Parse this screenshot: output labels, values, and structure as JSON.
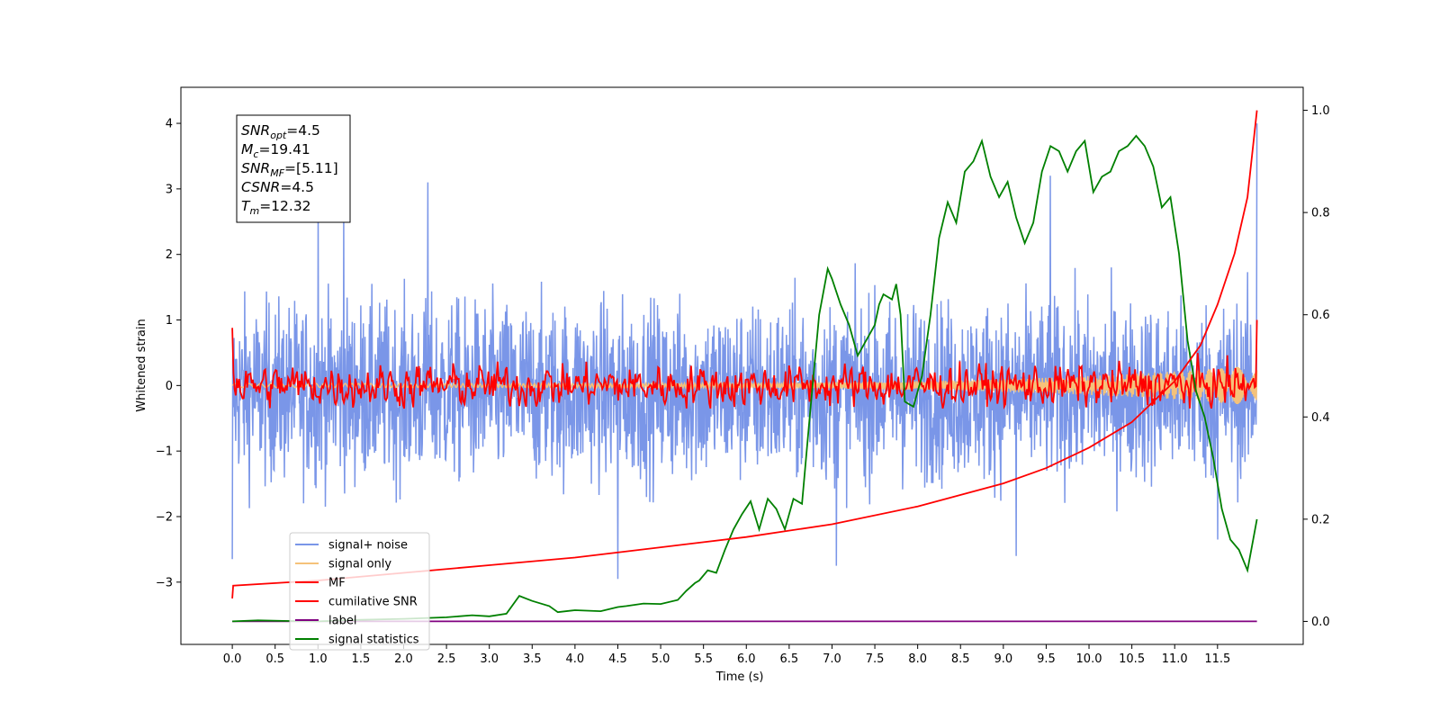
{
  "chart_data": {
    "type": "line",
    "xlabel": "Time (s)",
    "ylabel_left": "Whitened strain",
    "xlim": [
      -0.6,
      12.5
    ],
    "ylim_left": [
      -3.95,
      4.55
    ],
    "ylim_right": [
      -0.045,
      1.045
    ],
    "x_ticks": [
      "0.0",
      "0.5",
      "1.0",
      "1.5",
      "2.0",
      "2.5",
      "3.0",
      "3.5",
      "4.0",
      "4.5",
      "5.0",
      "5.5",
      "6.0",
      "6.5",
      "7.0",
      "7.5",
      "8.0",
      "8.5",
      "9.0",
      "9.5",
      "10.0",
      "10.5",
      "11.0",
      "11.5"
    ],
    "y_ticks_left": [
      "4",
      "3",
      "2",
      "1",
      "0",
      "−1",
      "−2",
      "−3"
    ],
    "y_ticks_right": [
      "1.0",
      "0.8",
      "0.6",
      "0.4",
      "0.2",
      "0.0"
    ],
    "grid": false,
    "legend_location": "lower-left",
    "annotation": {
      "lines": [
        {
          "sym": "SNR",
          "sub": "opt",
          "value": "=4.5"
        },
        {
          "sym": "M",
          "sub": "c",
          "value": "=19.41"
        },
        {
          "sym": "SNR",
          "sub": "MF",
          "value": "=[5.11]"
        },
        {
          "sym": "CSNR",
          "sub": "",
          "value": "=4.5"
        },
        {
          "sym": "T",
          "sub": "m",
          "value": "=12.32"
        }
      ]
    },
    "series": [
      {
        "name": "signal+ noise",
        "color": "#7a96e8",
        "axis": "left",
        "kind": "noise",
        "x_range": [
          0,
          11.96
        ],
        "center": -0.1,
        "amplitude": 1.1,
        "peaks": [
          [
            1.3,
            2.6
          ],
          [
            2.28,
            3.1
          ],
          [
            1.0,
            2.7
          ],
          [
            9.55,
            3.2
          ],
          [
            11.96,
            4.0
          ],
          [
            7.05,
            -2.75
          ],
          [
            4.5,
            -2.95
          ],
          [
            9.15,
            -2.6
          ],
          [
            11.5,
            -2.35
          ],
          [
            0.0,
            -2.65
          ]
        ]
      },
      {
        "name": "signal only",
        "color": "#f5c27a",
        "axis": "left",
        "kind": "chirp",
        "x_range": [
          0,
          11.96
        ],
        "amplitude_end": 0.28
      },
      {
        "name": "MF",
        "color": "#ff0000",
        "axis": "left",
        "kind": "noise_small",
        "x_range": [
          0,
          11.96
        ],
        "center": 0.0,
        "amplitude": 0.2,
        "start_value": 0.88,
        "end_value": 1.0
      },
      {
        "name": "cumilative SNR",
        "color": "#ff0000",
        "axis": "right",
        "x": [
          0.0,
          0.01,
          1.0,
          2.0,
          3.0,
          4.0,
          5.0,
          6.0,
          7.0,
          8.0,
          9.0,
          9.5,
          10.0,
          10.5,
          11.0,
          11.3,
          11.5,
          11.7,
          11.85,
          11.96
        ],
        "y": [
          0.045,
          0.07,
          0.08,
          0.095,
          0.11,
          0.125,
          0.145,
          0.165,
          0.19,
          0.225,
          0.27,
          0.3,
          0.34,
          0.39,
          0.47,
          0.54,
          0.62,
          0.72,
          0.83,
          1.0
        ]
      },
      {
        "name": "label",
        "color": "#800080",
        "axis": "right",
        "x": [
          0.0,
          11.96
        ],
        "y": [
          0.0,
          0.0
        ]
      },
      {
        "name": "signal statistics",
        "color": "#008000",
        "axis": "right",
        "x": [
          0.0,
          0.3,
          0.6,
          1.0,
          1.5,
          2.0,
          2.5,
          2.8,
          3.0,
          3.2,
          3.35,
          3.5,
          3.7,
          3.8,
          4.0,
          4.3,
          4.5,
          4.6,
          4.8,
          5.0,
          5.2,
          5.3,
          5.4,
          5.45,
          5.55,
          5.65,
          5.75,
          5.85,
          5.95,
          6.05,
          6.15,
          6.25,
          6.35,
          6.45,
          6.55,
          6.65,
          6.75,
          6.85,
          6.95,
          7.0,
          7.1,
          7.2,
          7.3,
          7.4,
          7.5,
          7.55,
          7.6,
          7.7,
          7.75,
          7.8,
          7.85,
          7.95,
          8.05,
          8.15,
          8.25,
          8.35,
          8.45,
          8.55,
          8.65,
          8.75,
          8.85,
          8.95,
          9.05,
          9.15,
          9.25,
          9.35,
          9.45,
          9.55,
          9.65,
          9.75,
          9.85,
          9.95,
          10.05,
          10.15,
          10.25,
          10.35,
          10.45,
          10.55,
          10.65,
          10.75,
          10.85,
          10.95,
          11.05,
          11.15,
          11.25,
          11.35,
          11.45,
          11.55,
          11.65,
          11.75,
          11.85,
          11.96
        ],
        "y": [
          0.0,
          0.002,
          0.001,
          0.0,
          0.003,
          0.005,
          0.008,
          0.012,
          0.01,
          0.015,
          0.05,
          0.04,
          0.03,
          0.018,
          0.022,
          0.02,
          0.028,
          0.03,
          0.035,
          0.034,
          0.042,
          0.06,
          0.075,
          0.08,
          0.1,
          0.095,
          0.14,
          0.18,
          0.21,
          0.235,
          0.18,
          0.24,
          0.22,
          0.18,
          0.24,
          0.23,
          0.42,
          0.6,
          0.69,
          0.67,
          0.62,
          0.58,
          0.52,
          0.55,
          0.58,
          0.62,
          0.64,
          0.63,
          0.66,
          0.6,
          0.43,
          0.42,
          0.48,
          0.6,
          0.75,
          0.82,
          0.78,
          0.88,
          0.9,
          0.94,
          0.87,
          0.83,
          0.86,
          0.79,
          0.74,
          0.78,
          0.88,
          0.93,
          0.92,
          0.88,
          0.92,
          0.94,
          0.84,
          0.87,
          0.88,
          0.92,
          0.93,
          0.95,
          0.93,
          0.89,
          0.81,
          0.83,
          0.72,
          0.55,
          0.45,
          0.4,
          0.32,
          0.22,
          0.16,
          0.14,
          0.1,
          0.2
        ]
      }
    ]
  }
}
